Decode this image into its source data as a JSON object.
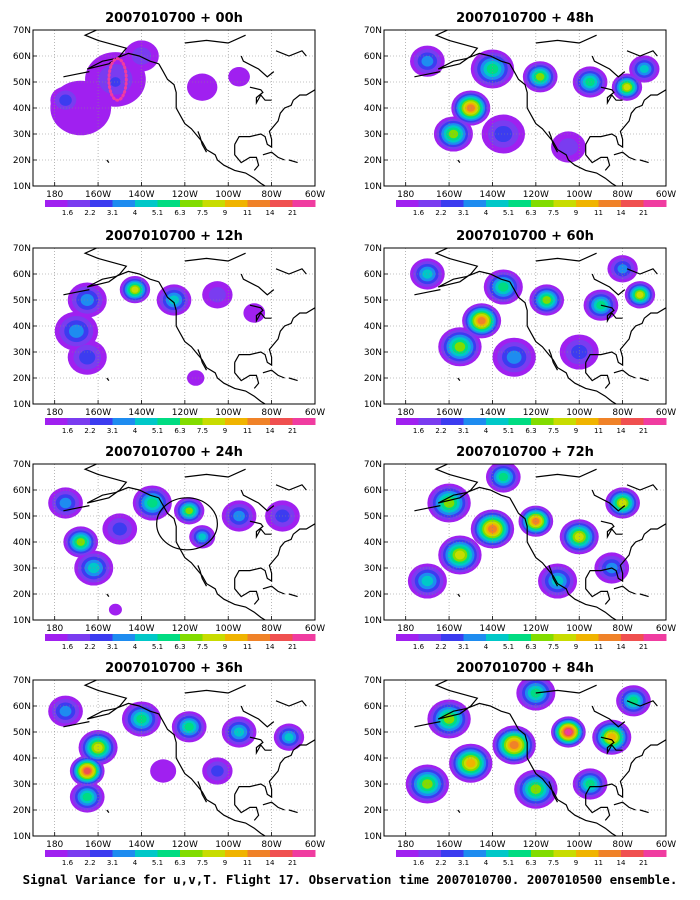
{
  "caption": "Signal Variance for u,v,T. Flight 17. Observation time 2007010700. 2007010500 ensemble.",
  "colors": {
    "background": "#ffffff",
    "scale": [
      "#a020f0",
      "#7a3cf0",
      "#3c3cf0",
      "#1e8cf0",
      "#00c8c8",
      "#00dc82",
      "#82dc00",
      "#c8dc00",
      "#f0b400",
      "#f08228",
      "#f05050",
      "#f03ca0"
    ]
  },
  "chart_data": [
    {
      "type": "heatmap",
      "title": "2007010700 + 00h",
      "x_ticks": [
        "180",
        "160W",
        "140W",
        "120W",
        "100W",
        "80W",
        "60W"
      ],
      "y_ticks": [
        "10N",
        "20N",
        "30N",
        "40N",
        "50N",
        "60N",
        "70N"
      ],
      "xlim": [
        "180",
        "60W"
      ],
      "ylim": [
        "10N",
        "70N"
      ],
      "color_levels": [
        "1.6",
        "2.2",
        "3.1",
        "4",
        "5.1",
        "6.3",
        "7.5",
        "9",
        "11",
        "14",
        "21",
        "29",
        "40"
      ],
      "blobs": [
        {
          "lon": -152,
          "lat": 51,
          "value": 1,
          "spread": 14
        },
        {
          "lon": -152,
          "lat": 50,
          "value": 2,
          "spread": 6
        },
        {
          "lon": -175,
          "lat": 43,
          "value": 2,
          "spread": 7
        },
        {
          "lon": -140,
          "lat": 60,
          "value": 1,
          "spread": 8
        },
        {
          "lon": -168,
          "lat": 40,
          "value": 0,
          "spread": 14
        },
        {
          "lon": -112,
          "lat": 48,
          "value": 0,
          "spread": 7
        },
        {
          "lon": -95,
          "lat": 52,
          "value": 0,
          "spread": 5
        }
      ],
      "annotation": {
        "type": "ellipse",
        "style": "dotted",
        "color": "#f03ca0",
        "lon": -151,
        "lat": 51,
        "rlon": 4,
        "rlat": 8
      }
    },
    {
      "type": "heatmap",
      "title": "2007010700 + 48h",
      "x_ticks": [
        "180",
        "160W",
        "140W",
        "120W",
        "100W",
        "80W",
        "60W"
      ],
      "y_ticks": [
        "10N",
        "20N",
        "30N",
        "40N",
        "50N",
        "60N",
        "70N"
      ],
      "xlim": [
        "180",
        "60W"
      ],
      "ylim": [
        "10N",
        "70N"
      ],
      "color_levels": [
        "1.6",
        "2.2",
        "3.1",
        "4",
        "5.1",
        "6.3",
        "7.5",
        "9",
        "11",
        "14",
        "21",
        "29",
        "40"
      ],
      "blobs": [
        {
          "lon": -150,
          "lat": 40,
          "value": 9,
          "spread": 9
        },
        {
          "lon": -158,
          "lat": 30,
          "value": 6,
          "spread": 9
        },
        {
          "lon": -140,
          "lat": 55,
          "value": 5,
          "spread": 10
        },
        {
          "lon": -118,
          "lat": 52,
          "value": 6,
          "spread": 8
        },
        {
          "lon": -95,
          "lat": 50,
          "value": 5,
          "spread": 8
        },
        {
          "lon": -78,
          "lat": 48,
          "value": 7,
          "spread": 7
        },
        {
          "lon": -70,
          "lat": 55,
          "value": 4,
          "spread": 7
        },
        {
          "lon": -170,
          "lat": 58,
          "value": 3,
          "spread": 8
        },
        {
          "lon": -135,
          "lat": 30,
          "value": 2,
          "spread": 10
        },
        {
          "lon": -105,
          "lat": 25,
          "value": 1,
          "spread": 8
        }
      ]
    },
    {
      "type": "heatmap",
      "title": "2007010700 + 12h",
      "x_ticks": [
        "180",
        "160W",
        "140W",
        "120W",
        "100W",
        "80W",
        "60W"
      ],
      "y_ticks": [
        "10N",
        "20N",
        "30N",
        "40N",
        "50N",
        "60N",
        "70N"
      ],
      "xlim": [
        "180",
        "60W"
      ],
      "ylim": [
        "10N",
        "70N"
      ],
      "color_levels": [
        "1.6",
        "2.2",
        "3.1",
        "4",
        "5.1",
        "6.3",
        "7.5",
        "9",
        "11",
        "14",
        "21",
        "29",
        "40"
      ],
      "blobs": [
        {
          "lon": -143,
          "lat": 54,
          "value": 7,
          "spread": 7
        },
        {
          "lon": -125,
          "lat": 50,
          "value": 4,
          "spread": 8
        },
        {
          "lon": -165,
          "lat": 50,
          "value": 3,
          "spread": 9
        },
        {
          "lon": -170,
          "lat": 38,
          "value": 3,
          "spread": 10
        },
        {
          "lon": -165,
          "lat": 28,
          "value": 2,
          "spread": 9
        },
        {
          "lon": -105,
          "lat": 52,
          "value": 1,
          "spread": 7
        },
        {
          "lon": -115,
          "lat": 20,
          "value": 0,
          "spread": 4
        },
        {
          "lon": -88,
          "lat": 45,
          "value": 0,
          "spread": 5
        }
      ]
    },
    {
      "type": "heatmap",
      "title": "2007010700 + 60h",
      "x_ticks": [
        "180",
        "160W",
        "140W",
        "120W",
        "100W",
        "80W",
        "60W"
      ],
      "y_ticks": [
        "10N",
        "20N",
        "30N",
        "40N",
        "50N",
        "60N",
        "70N"
      ],
      "xlim": [
        "180",
        "60W"
      ],
      "ylim": [
        "10N",
        "70N"
      ],
      "color_levels": [
        "1.6",
        "2.2",
        "3.1",
        "4",
        "5.1",
        "6.3",
        "7.5",
        "9",
        "11",
        "14",
        "21",
        "29",
        "40"
      ],
      "blobs": [
        {
          "lon": -145,
          "lat": 42,
          "value": 9,
          "spread": 9
        },
        {
          "lon": -155,
          "lat": 32,
          "value": 6,
          "spread": 10
        },
        {
          "lon": -135,
          "lat": 55,
          "value": 5,
          "spread": 9
        },
        {
          "lon": -115,
          "lat": 50,
          "value": 6,
          "spread": 8
        },
        {
          "lon": -90,
          "lat": 48,
          "value": 5,
          "spread": 8
        },
        {
          "lon": -72,
          "lat": 52,
          "value": 7,
          "spread": 7
        },
        {
          "lon": -170,
          "lat": 60,
          "value": 4,
          "spread": 8
        },
        {
          "lon": -130,
          "lat": 28,
          "value": 3,
          "spread": 10
        },
        {
          "lon": -100,
          "lat": 30,
          "value": 2,
          "spread": 9
        },
        {
          "lon": -80,
          "lat": 62,
          "value": 3,
          "spread": 7
        }
      ]
    },
    {
      "type": "heatmap",
      "title": "2007010700 + 24h",
      "x_ticks": [
        "180",
        "160W",
        "140W",
        "120W",
        "100W",
        "80W",
        "60W"
      ],
      "y_ticks": [
        "10N",
        "20N",
        "30N",
        "40N",
        "50N",
        "60N",
        "70N"
      ],
      "xlim": [
        "180",
        "60W"
      ],
      "ylim": [
        "10N",
        "70N"
      ],
      "color_levels": [
        "1.6",
        "2.2",
        "3.1",
        "4",
        "5.1",
        "6.3",
        "7.5",
        "9",
        "11",
        "14",
        "21",
        "29",
        "40"
      ],
      "blobs": [
        {
          "lon": -168,
          "lat": 40,
          "value": 6,
          "spread": 8
        },
        {
          "lon": -162,
          "lat": 30,
          "value": 4,
          "spread": 9
        },
        {
          "lon": -135,
          "lat": 55,
          "value": 5,
          "spread": 9
        },
        {
          "lon": -118,
          "lat": 52,
          "value": 6,
          "spread": 7
        },
        {
          "lon": -112,
          "lat": 42,
          "value": 4,
          "spread": 6
        },
        {
          "lon": -95,
          "lat": 50,
          "value": 3,
          "spread": 8
        },
        {
          "lon": -75,
          "lat": 50,
          "value": 2,
          "spread": 8
        },
        {
          "lon": -175,
          "lat": 55,
          "value": 3,
          "spread": 8
        },
        {
          "lon": -150,
          "lat": 45,
          "value": 2,
          "spread": 8
        },
        {
          "lon": -152,
          "lat": 14,
          "value": 0,
          "spread": 3
        }
      ],
      "annotation": {
        "type": "ellipse",
        "style": "solid",
        "color": "#000000",
        "lon": -119,
        "lat": 47,
        "rlon": 14,
        "rlat": 10
      }
    },
    {
      "type": "heatmap",
      "title": "2007010700 + 72h",
      "x_ticks": [
        "180",
        "160W",
        "140W",
        "120W",
        "100W",
        "80W",
        "60W"
      ],
      "y_ticks": [
        "10N",
        "20N",
        "30N",
        "40N",
        "50N",
        "60N",
        "70N"
      ],
      "xlim": [
        "180",
        "60W"
      ],
      "ylim": [
        "10N",
        "70N"
      ],
      "color_levels": [
        "1.6",
        "2.2",
        "3.1",
        "4",
        "5.1",
        "6.3",
        "7.5",
        "9",
        "11",
        "14",
        "21",
        "29",
        "40"
      ],
      "blobs": [
        {
          "lon": -140,
          "lat": 45,
          "value": 9,
          "spread": 10
        },
        {
          "lon": -120,
          "lat": 48,
          "value": 9,
          "spread": 8
        },
        {
          "lon": -155,
          "lat": 35,
          "value": 7,
          "spread": 10
        },
        {
          "lon": -100,
          "lat": 42,
          "value": 7,
          "spread": 9
        },
        {
          "lon": -160,
          "lat": 55,
          "value": 6,
          "spread": 10
        },
        {
          "lon": -80,
          "lat": 55,
          "value": 7,
          "spread": 8
        },
        {
          "lon": -170,
          "lat": 25,
          "value": 4,
          "spread": 9
        },
        {
          "lon": -110,
          "lat": 25,
          "value": 4,
          "spread": 9
        },
        {
          "lon": -85,
          "lat": 30,
          "value": 3,
          "spread": 8
        },
        {
          "lon": -135,
          "lat": 65,
          "value": 5,
          "spread": 8
        }
      ]
    },
    {
      "type": "heatmap",
      "title": "2007010700 + 36h",
      "x_ticks": [
        "180",
        "160W",
        "140W",
        "120W",
        "100W",
        "80W",
        "60W"
      ],
      "y_ticks": [
        "10N",
        "20N",
        "30N",
        "40N",
        "50N",
        "60N",
        "70N"
      ],
      "xlim": [
        "180",
        "60W"
      ],
      "ylim": [
        "10N",
        "70N"
      ],
      "color_levels": [
        "1.6",
        "2.2",
        "3.1",
        "4",
        "5.1",
        "6.3",
        "7.5",
        "9",
        "11",
        "14",
        "21",
        "29",
        "40"
      ],
      "blobs": [
        {
          "lon": -165,
          "lat": 35,
          "value": 10,
          "spread": 8
        },
        {
          "lon": -160,
          "lat": 44,
          "value": 7,
          "spread": 9
        },
        {
          "lon": -165,
          "lat": 25,
          "value": 5,
          "spread": 8
        },
        {
          "lon": -140,
          "lat": 55,
          "value": 5,
          "spread": 9
        },
        {
          "lon": -118,
          "lat": 52,
          "value": 5,
          "spread": 8
        },
        {
          "lon": -95,
          "lat": 50,
          "value": 4,
          "spread": 8
        },
        {
          "lon": -72,
          "lat": 48,
          "value": 4,
          "spread": 7
        },
        {
          "lon": -175,
          "lat": 58,
          "value": 3,
          "spread": 8
        },
        {
          "lon": -105,
          "lat": 35,
          "value": 2,
          "spread": 7
        },
        {
          "lon": -130,
          "lat": 35,
          "value": 0,
          "spread": 6
        }
      ]
    },
    {
      "type": "heatmap",
      "title": "2007010700 + 84h",
      "x_ticks": [
        "180",
        "160W",
        "140W",
        "120W",
        "100W",
        "80W",
        "60W"
      ],
      "y_ticks": [
        "10N",
        "20N",
        "30N",
        "40N",
        "50N",
        "60N",
        "70N"
      ],
      "xlim": [
        "180",
        "60W"
      ],
      "ylim": [
        "10N",
        "70N"
      ],
      "color_levels": [
        "1.6",
        "2.2",
        "3.1",
        "4",
        "5.1",
        "6.3",
        "7.5",
        "9",
        "11",
        "14",
        "21",
        "29",
        "40"
      ],
      "blobs": [
        {
          "lon": -105,
          "lat": 50,
          "value": 11,
          "spread": 8
        },
        {
          "lon": -130,
          "lat": 45,
          "value": 9,
          "spread": 10
        },
        {
          "lon": -150,
          "lat": 38,
          "value": 8,
          "spread": 10
        },
        {
          "lon": -85,
          "lat": 48,
          "value": 8,
          "spread": 9
        },
        {
          "lon": -160,
          "lat": 55,
          "value": 6,
          "spread": 10
        },
        {
          "lon": -170,
          "lat": 30,
          "value": 6,
          "spread": 10
        },
        {
          "lon": -120,
          "lat": 28,
          "value": 6,
          "spread": 10
        },
        {
          "lon": -95,
          "lat": 30,
          "value": 5,
          "spread": 8
        },
        {
          "lon": -120,
          "lat": 65,
          "value": 5,
          "spread": 9
        },
        {
          "lon": -75,
          "lat": 62,
          "value": 5,
          "spread": 8
        }
      ]
    }
  ]
}
